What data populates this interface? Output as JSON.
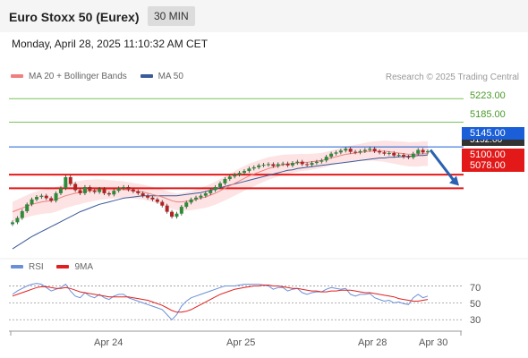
{
  "header": {
    "title": "Euro Stoxx 50 (Eurex)",
    "timeframe": "30 MIN"
  },
  "datetime": "Monday, April 28, 2025 11:10:32 AM CET",
  "legend": {
    "items": [
      {
        "label": "MA 20 + Bollinger Bands",
        "color": "#f08080"
      },
      {
        "label": "MA 50",
        "color": "#3a5a9a"
      }
    ],
    "copyright": "Research © 2025 Trading Central"
  },
  "chart_data": {
    "type": "candlestick",
    "x_ticks": [
      "Apr 24",
      "Apr 25",
      "Apr 28",
      "Apr 30"
    ],
    "levels": {
      "resistance": [
        5223.0,
        5185.0
      ],
      "pivot": 5145.0,
      "hidden_label": "5132.00",
      "support": [
        5100.0,
        5078.0
      ]
    },
    "current_price": "5145.00",
    "price_range": [
      4970,
      5245
    ],
    "close": [
      5023,
      5030,
      5041,
      5052,
      5060,
      5064,
      5066,
      5062,
      5058,
      5070,
      5078,
      5096,
      5085,
      5075,
      5070,
      5080,
      5074,
      5072,
      5077,
      5070,
      5068,
      5074,
      5078,
      5080,
      5076,
      5073,
      5070,
      5066,
      5063,
      5060,
      5056,
      5050,
      5040,
      5032,
      5037,
      5048,
      5055,
      5060,
      5063,
      5066,
      5070,
      5075,
      5080,
      5086,
      5093,
      5097,
      5100,
      5103,
      5106,
      5110,
      5112,
      5115,
      5116,
      5117,
      5114,
      5117,
      5118,
      5115,
      5119,
      5121,
      5117,
      5116,
      5119,
      5121,
      5123,
      5129,
      5134,
      5136,
      5139,
      5142,
      5137,
      5136,
      5138,
      5140,
      5142,
      5138,
      5136,
      5134,
      5135,
      5131,
      5132,
      5129,
      5128,
      5134,
      5140,
      5136,
      5138
    ],
    "ma20": [
      5040,
      5043,
      5046,
      5049,
      5052,
      5054,
      5056,
      5057,
      5058,
      5060,
      5063,
      5066,
      5068,
      5070,
      5071,
      5073,
      5074,
      5075,
      5076,
      5076,
      5076,
      5076,
      5076,
      5076,
      5075,
      5074,
      5073,
      5072,
      5070,
      5068,
      5066,
      5064,
      5061,
      5058,
      5056,
      5056,
      5057,
      5058,
      5060,
      5062,
      5064,
      5067,
      5070,
      5074,
      5078,
      5082,
      5086,
      5090,
      5094,
      5098,
      5101,
      5104,
      5107,
      5110,
      5112,
      5114,
      5116,
      5117,
      5118,
      5119,
      5120,
      5120,
      5121,
      5122,
      5123,
      5125,
      5127,
      5129,
      5131,
      5133,
      5134,
      5135,
      5136,
      5137,
      5138,
      5138,
      5138,
      5138,
      5137,
      5136,
      5135,
      5134,
      5133,
      5133,
      5133,
      5134,
      5134
    ],
    "ma50": [
      4980,
      4985,
      4990,
      4995,
      5000,
      5004,
      5008,
      5012,
      5016,
      5020,
      5024,
      5028,
      5032,
      5036,
      5040,
      5043,
      5046,
      5049,
      5052,
      5054,
      5056,
      5058,
      5060,
      5062,
      5063,
      5064,
      5065,
      5066,
      5066,
      5066,
      5066,
      5066,
      5066,
      5066,
      5066,
      5067,
      5068,
      5069,
      5070,
      5071,
      5073,
      5075,
      5077,
      5079,
      5081,
      5083,
      5085,
      5087,
      5089,
      5091,
      5093,
      5095,
      5097,
      5099,
      5101,
      5103,
      5105,
      5107,
      5108,
      5110,
      5111,
      5112,
      5113,
      5114,
      5115,
      5116,
      5117,
      5118,
      5119,
      5120,
      5121,
      5122,
      5123,
      5124,
      5125,
      5126,
      5127,
      5127,
      5128,
      5128,
      5129,
      5129,
      5130,
      5130,
      5131,
      5131,
      5132
    ],
    "rsi": {
      "labels": [
        "70",
        "50",
        "30"
      ],
      "levels": [
        70,
        50,
        30
      ],
      "rsi": [
        60,
        64,
        67,
        70,
        72,
        73,
        72,
        68,
        64,
        66,
        68,
        72,
        64,
        58,
        56,
        62,
        58,
        56,
        60,
        56,
        54,
        58,
        60,
        60,
        56,
        54,
        52,
        50,
        48,
        46,
        44,
        42,
        36,
        30,
        36,
        46,
        52,
        56,
        58,
        60,
        62,
        64,
        66,
        68,
        70,
        70,
        70,
        71,
        72,
        72,
        72,
        72,
        71,
        70,
        66,
        68,
        68,
        64,
        66,
        67,
        62,
        60,
        62,
        63,
        63,
        66,
        68,
        67,
        66,
        67,
        60,
        58,
        60,
        60,
        61,
        56,
        54,
        52,
        53,
        50,
        51,
        49,
        48,
        56,
        60,
        56,
        58
      ],
      "ma9": [
        58,
        60,
        62,
        64,
        66,
        68,
        69,
        69,
        68,
        67,
        67,
        68,
        67,
        65,
        63,
        62,
        61,
        60,
        59,
        58,
        57,
        57,
        57,
        57,
        57,
        56,
        55,
        54,
        53,
        51,
        49,
        47,
        44,
        41,
        39,
        39,
        40,
        42,
        45,
        48,
        51,
        54,
        57,
        60,
        62,
        64,
        66,
        67,
        68,
        69,
        70,
        70,
        71,
        71,
        70,
        70,
        69,
        68,
        67,
        67,
        66,
        65,
        64,
        64,
        63,
        63,
        64,
        64,
        65,
        65,
        65,
        64,
        63,
        62,
        62,
        61,
        60,
        59,
        58,
        57,
        55,
        54,
        53,
        52,
        52,
        53,
        54
      ]
    }
  },
  "rsi_legend": {
    "items": [
      {
        "label": "RSI",
        "color": "#6a8fd8"
      },
      {
        "label": "9MA",
        "color": "#e02020"
      }
    ]
  },
  "colors": {
    "resistance": "#7ac25a",
    "pivot": "#1a5fd8",
    "support": "#e31919",
    "bands": "#fde0e0",
    "ma20": "#f08080",
    "ma50": "#3a5a9a",
    "arrow": "#2a62b0"
  }
}
